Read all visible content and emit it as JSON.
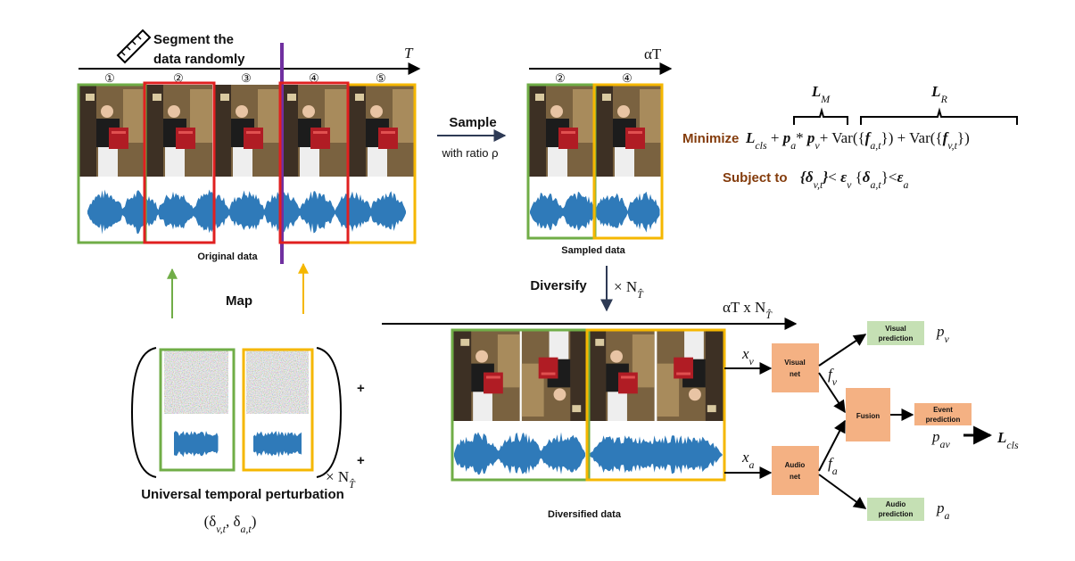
{
  "original": {
    "instruction": [
      "Segment  the",
      "data randomly"
    ],
    "axis": "T",
    "segments": [
      "①",
      "②",
      "③",
      "④",
      "⑤"
    ],
    "caption": "Original data"
  },
  "map": "Map",
  "perturbation": {
    "caption": "Universal temporal perturbation",
    "symbol": [
      {
        "main": "(δ"
      },
      {
        "sub": "v,t"
      },
      {
        "main": ", δ"
      },
      {
        "sub": "a,t"
      },
      {
        "main": ")"
      }
    ],
    "multiplier": [
      {
        "main": "× N"
      },
      {
        "sub": "T̂"
      }
    ],
    "plus": [
      "+",
      "+"
    ]
  },
  "sample": {
    "label": "Sample",
    "ratio": "with ratio ρ"
  },
  "sampled": {
    "axis": "αT",
    "segments": [
      "②",
      "④"
    ],
    "caption": "Sampled data"
  },
  "diversify": {
    "label": "Diversify",
    "multiplier": [
      {
        "main": "× N"
      },
      {
        "sub": "T̂"
      }
    ]
  },
  "diversified": {
    "axis": [
      {
        "main": "αT x N"
      },
      {
        "sub": "T̂"
      }
    ],
    "caption": "Diversified data"
  },
  "network": {
    "x_v": [
      {
        "main": "x"
      },
      {
        "sub": "v"
      }
    ],
    "x_a": [
      {
        "main": "x"
      },
      {
        "sub": "a"
      }
    ],
    "f_v": [
      {
        "main": "f"
      },
      {
        "sub": "v"
      }
    ],
    "f_a": [
      {
        "main": "f"
      },
      {
        "sub": "a"
      }
    ],
    "visual_net": [
      "Visual",
      "net"
    ],
    "audio_net": [
      "Audio",
      "net"
    ],
    "fusion": "Fusion",
    "visual_prediction": [
      "Visual",
      "prediction"
    ],
    "event_prediction": [
      "Event",
      "prediction"
    ],
    "audio_prediction": [
      "Audio",
      "prediction"
    ],
    "p_v": [
      {
        "main": "p"
      },
      {
        "sub": "v"
      }
    ],
    "p_a": [
      {
        "main": "p"
      },
      {
        "sub": "a"
      }
    ],
    "p_av": [
      {
        "main": "p"
      },
      {
        "sub": "av"
      }
    ],
    "l_cls": [
      {
        "var": "L"
      },
      {
        "sub": "cls"
      }
    ]
  },
  "objective": {
    "l_m": [
      {
        "var": "L"
      },
      {
        "sub": "M"
      }
    ],
    "l_r": [
      {
        "var": "L"
      },
      {
        "sub": "R"
      }
    ],
    "keyword": "Minimize",
    "expression": [
      {
        "var": "L"
      },
      {
        "sub": "cls"
      },
      {
        "main": " + "
      },
      {
        "var": "p"
      },
      {
        "sub": "a"
      },
      {
        "main": "* "
      },
      {
        "var": "p"
      },
      {
        "sub": "v"
      },
      {
        "main": "+ Var({"
      },
      {
        "var": "f"
      },
      {
        "sub": "a,t"
      },
      {
        "main": "}) + Var({"
      },
      {
        "var": "f"
      },
      {
        "sub": "v,t"
      },
      {
        "main": "})"
      }
    ],
    "constraint_keyword": "Subject to",
    "constraint": [
      {
        "var": "{δ"
      },
      {
        "sub": "v,t"
      },
      {
        "var": "}"
      },
      {
        "main": "< "
      },
      {
        "var": "ε"
      },
      {
        "sub": "v"
      },
      {
        "main": "   {"
      },
      {
        "var": "δ"
      },
      {
        "sub": "a,t"
      },
      {
        "main": "}<"
      },
      {
        "var": "ε"
      },
      {
        "sub": "a"
      }
    ]
  }
}
